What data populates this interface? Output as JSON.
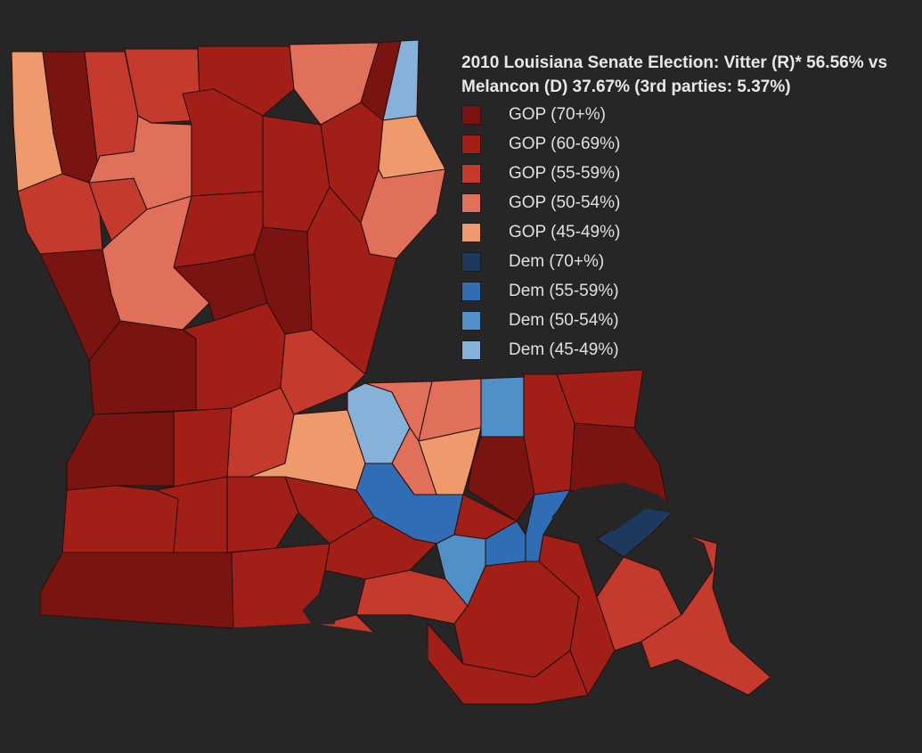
{
  "title": "2010 Louisiana Senate Election: Vitter (R)* 56.56% vs Melancon (D) 37.67% (3rd parties: 5.37%)",
  "colors": {
    "gop70": "#7a1410",
    "gop60": "#a11f16",
    "gop55": "#c43a2c",
    "gop50": "#e0705a",
    "gop45": "#ee9a6c",
    "dem70": "#1d3a5e",
    "dem55": "#2f6db5",
    "dem50": "#4f90c8",
    "dem45": "#86b1d8",
    "water": "#262626"
  },
  "legend": [
    {
      "label": "GOP (70+%)",
      "color": "#7a1410"
    },
    {
      "label": "GOP (60-69%)",
      "color": "#a11f16"
    },
    {
      "label": "GOP (55-59%)",
      "color": "#c43a2c"
    },
    {
      "label": "GOP (50-54%)",
      "color": "#e0705a"
    },
    {
      "label": "GOP (45-49%)",
      "color": "#ee9a6c"
    },
    {
      "label": "Dem (70+%)",
      "color": "#1d3a5e"
    },
    {
      "label": "Dem (55-59%)",
      "color": "#2f6db5"
    },
    {
      "label": "Dem (50-54%)",
      "color": "#4f90c8"
    },
    {
      "label": "Dem (45-49%)",
      "color": "#86b1d8"
    }
  ]
}
